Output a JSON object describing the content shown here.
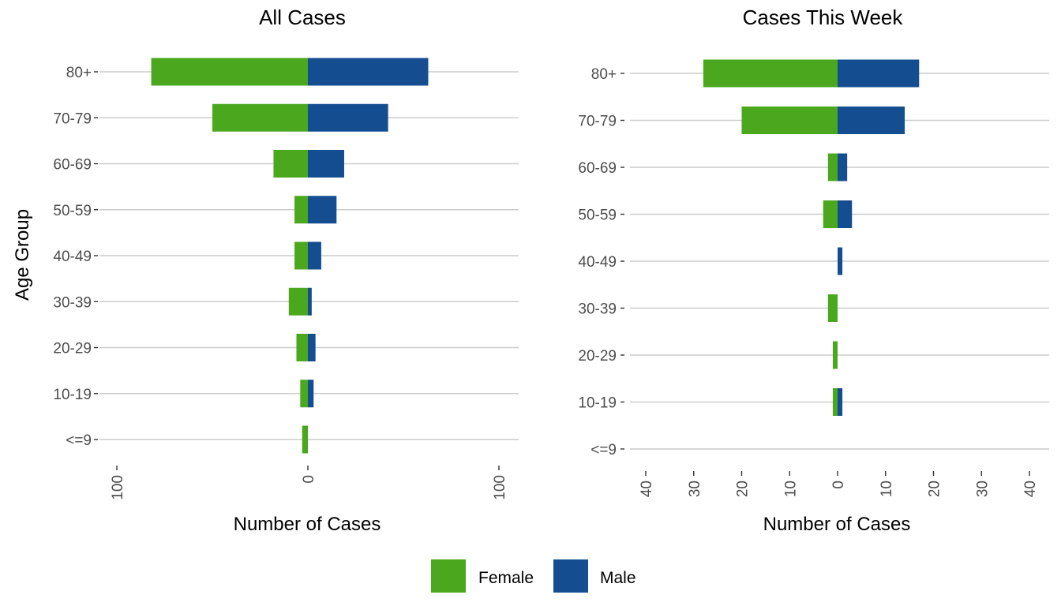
{
  "chart_data": [
    {
      "type": "bar",
      "orientation": "horizontal",
      "layout": "population-pyramid",
      "title": "All Cases",
      "xlabel": "Number of Cases",
      "ylabel": "Age Group",
      "categories": [
        "<=9",
        "10-19",
        "20-29",
        "30-39",
        "40-49",
        "50-59",
        "60-69",
        "70-79",
        "80+"
      ],
      "series": [
        {
          "name": "Female",
          "values": [
            3,
            4,
            6,
            10,
            7,
            7,
            18,
            50,
            82
          ]
        },
        {
          "name": "Male",
          "values": [
            0,
            3,
            4,
            2,
            7,
            15,
            19,
            42,
            63
          ]
        }
      ],
      "xlim": [
        -100,
        100
      ],
      "x_tick_values": [
        -100,
        0,
        100
      ],
      "x_tick_labels": [
        "100",
        "0",
        "100"
      ],
      "grid": "horizontal"
    },
    {
      "type": "bar",
      "orientation": "horizontal",
      "layout": "population-pyramid",
      "title": "Cases This Week",
      "xlabel": "Number of Cases",
      "ylabel": "",
      "categories": [
        "<=9",
        "10-19",
        "20-29",
        "30-39",
        "40-49",
        "50-59",
        "60-69",
        "70-79",
        "80+"
      ],
      "series": [
        {
          "name": "Female",
          "values": [
            0,
            1,
            1,
            2,
            0,
            3,
            2,
            20,
            28
          ]
        },
        {
          "name": "Male",
          "values": [
            0,
            1,
            0,
            0,
            1,
            3,
            2,
            14,
            17
          ]
        }
      ],
      "xlim": [
        -40,
        40
      ],
      "x_tick_values": [
        -40,
        -30,
        -20,
        -10,
        0,
        10,
        20,
        30,
        40
      ],
      "x_tick_labels": [
        "40",
        "30",
        "20",
        "10",
        "0",
        "10",
        "20",
        "30",
        "40"
      ],
      "grid": "horizontal"
    }
  ],
  "legend": {
    "position": "bottom",
    "items": [
      {
        "label": "Female",
        "color": "#4aa71e"
      },
      {
        "label": "Male",
        "color": "#154d91"
      }
    ]
  },
  "colors": {
    "female": "#4aa71e",
    "male": "#154d91"
  }
}
